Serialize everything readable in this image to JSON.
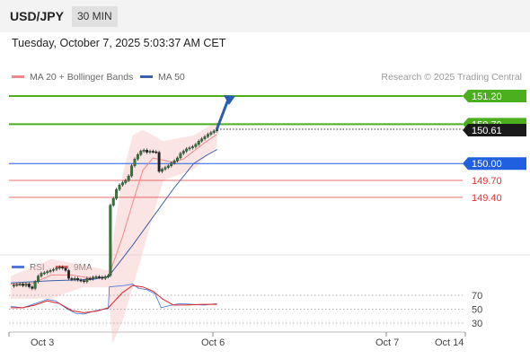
{
  "header": {
    "pair": "USD/JPY",
    "timeframe": "30 MIN"
  },
  "datetime": "Tuesday, October 7, 2025 5:03:37 AM CET",
  "legend": {
    "ma20": {
      "label": "MA 20 + Bollinger Bands",
      "color": "#f08a8a"
    },
    "ma50": {
      "label": "MA 50",
      "color": "#3b5fa8"
    }
  },
  "credit": "Research © 2025 Trading Central",
  "price_levels": [
    {
      "label": "151.20",
      "value": 151.2,
      "type": "resistance",
      "color": "#4caf1e"
    },
    {
      "label": "150.70",
      "value": 150.7,
      "type": "resistance",
      "color": "#4caf1e"
    },
    {
      "label": "150.61",
      "value": 150.61,
      "type": "last",
      "color": "#222222"
    },
    {
      "label": "150.00",
      "value": 150.0,
      "type": "pivot",
      "color": "#1f5fe0"
    },
    {
      "label": "149.70",
      "value": 149.7,
      "type": "support",
      "color": "#e03030"
    },
    {
      "label": "149.40",
      "value": 149.4,
      "type": "support",
      "color": "#e03030"
    }
  ],
  "rsi": {
    "legend_rsi": "RSI",
    "legend_ma": "9MA",
    "rsi_color": "#5577dd",
    "ma_color": "#dd2222",
    "levels": [
      "70",
      "50",
      "30"
    ]
  },
  "x_labels": [
    "Oct 3",
    "Oct 6",
    "Oct 7",
    "Oct 14"
  ],
  "chart_data": {
    "type": "candlestick",
    "pair": "USD/JPY",
    "timeframe": "30 MIN",
    "price_path": [
      [
        0,
        147.82
      ],
      [
        3,
        147.84
      ],
      [
        6,
        147.85
      ],
      [
        9,
        147.86
      ],
      [
        12,
        147.83
      ],
      [
        15,
        147.86
      ],
      [
        18,
        147.81
      ],
      [
        21,
        147.78
      ],
      [
        24,
        147.9
      ],
      [
        27,
        148.0
      ],
      [
        30,
        148.05
      ],
      [
        33,
        148.06
      ],
      [
        36,
        148.08
      ],
      [
        39,
        148.1
      ],
      [
        42,
        148.12
      ],
      [
        45,
        148.14
      ],
      [
        48,
        148.16
      ],
      [
        51,
        148.14
      ],
      [
        54,
        148.1
      ],
      [
        57,
        147.96
      ],
      [
        60,
        147.94
      ],
      [
        63,
        147.96
      ],
      [
        66,
        147.93
      ],
      [
        69,
        147.92
      ],
      [
        72,
        147.9
      ],
      [
        75,
        147.96
      ],
      [
        78,
        147.95
      ],
      [
        81,
        147.98
      ],
      [
        84,
        147.99
      ],
      [
        87,
        147.98
      ],
      [
        90,
        147.96
      ],
      [
        93,
        147.99
      ],
      [
        96,
        148.01
      ],
      [
        98,
        149.26
      ],
      [
        101,
        149.38
      ],
      [
        104,
        149.54
      ],
      [
        107,
        149.62
      ],
      [
        110,
        149.66
      ],
      [
        113,
        149.7
      ],
      [
        116,
        149.78
      ],
      [
        119,
        149.96
      ],
      [
        122,
        150.08
      ],
      [
        125,
        150.16
      ],
      [
        128,
        150.22
      ],
      [
        131,
        150.24
      ],
      [
        134,
        150.2
      ],
      [
        137,
        150.22
      ],
      [
        140,
        150.21
      ],
      [
        143,
        150.2
      ],
      [
        146,
        149.86
      ],
      [
        149,
        149.9
      ],
      [
        152,
        149.93
      ],
      [
        155,
        149.96
      ],
      [
        158,
        150.01
      ],
      [
        161,
        150.05
      ],
      [
        164,
        150.1
      ],
      [
        167,
        150.18
      ],
      [
        170,
        150.22
      ],
      [
        173,
        150.26
      ],
      [
        176,
        150.28
      ],
      [
        179,
        150.3
      ],
      [
        182,
        150.34
      ],
      [
        185,
        150.4
      ],
      [
        188,
        150.44
      ],
      [
        191,
        150.48
      ],
      [
        194,
        150.52
      ],
      [
        197,
        150.55
      ],
      [
        200,
        150.58
      ],
      [
        203,
        150.61
      ]
    ],
    "ma20": [
      [
        0,
        147.86
      ],
      [
        20,
        147.86
      ],
      [
        40,
        148.02
      ],
      [
        60,
        148.02
      ],
      [
        80,
        147.96
      ],
      [
        96,
        147.98
      ],
      [
        110,
        148.7
      ],
      [
        120,
        149.3
      ],
      [
        130,
        149.88
      ],
      [
        140,
        150.1
      ],
      [
        150,
        150.06
      ],
      [
        160,
        150.02
      ],
      [
        170,
        150.08
      ],
      [
        180,
        150.22
      ],
      [
        190,
        150.36
      ],
      [
        203,
        150.52
      ]
    ],
    "ma50": [
      [
        0,
        147.88
      ],
      [
        40,
        147.92
      ],
      [
        80,
        147.94
      ],
      [
        96,
        147.99
      ],
      [
        120,
        148.55
      ],
      [
        140,
        149.05
      ],
      [
        160,
        149.55
      ],
      [
        180,
        150.0
      ],
      [
        192,
        150.14
      ],
      [
        203,
        150.25
      ]
    ],
    "bollinger_upper": [
      [
        0,
        148.0
      ],
      [
        40,
        148.3
      ],
      [
        70,
        148.2
      ],
      [
        96,
        148.1
      ],
      [
        110,
        149.8
      ],
      [
        120,
        150.5
      ],
      [
        130,
        150.6
      ],
      [
        150,
        150.4
      ],
      [
        180,
        150.5
      ],
      [
        203,
        150.75
      ]
    ],
    "bollinger_lower": [
      [
        0,
        147.6
      ],
      [
        40,
        147.6
      ],
      [
        70,
        147.8
      ],
      [
        96,
        147.8
      ],
      [
        100,
        146.8
      ],
      [
        110,
        147.2
      ],
      [
        120,
        147.8
      ],
      [
        150,
        149.7
      ],
      [
        180,
        149.9
      ],
      [
        203,
        150.3
      ]
    ],
    "forecast_arrow": {
      "from": [
        203,
        150.62
      ],
      "to": [
        221,
        151.2
      ]
    },
    "rsi_values": [
      [
        0,
        54
      ],
      [
        12,
        52
      ],
      [
        24,
        58
      ],
      [
        36,
        64
      ],
      [
        44,
        62
      ],
      [
        56,
        50
      ],
      [
        64,
        44
      ],
      [
        72,
        43
      ],
      [
        84,
        48
      ],
      [
        96,
        51
      ],
      [
        97,
        82
      ],
      [
        104,
        83
      ],
      [
        112,
        84
      ],
      [
        120,
        86
      ],
      [
        126,
        80
      ],
      [
        134,
        78
      ],
      [
        142,
        72
      ],
      [
        148,
        52
      ],
      [
        156,
        55
      ],
      [
        166,
        58
      ],
      [
        178,
        57
      ],
      [
        190,
        56
      ],
      [
        203,
        58
      ]
    ],
    "rsi_ma": [
      [
        0,
        52
      ],
      [
        12,
        52
      ],
      [
        24,
        56
      ],
      [
        36,
        62
      ],
      [
        48,
        58
      ],
      [
        60,
        48
      ],
      [
        72,
        45
      ],
      [
        84,
        47
      ],
      [
        96,
        52
      ],
      [
        110,
        74
      ],
      [
        120,
        84
      ],
      [
        130,
        82
      ],
      [
        140,
        76
      ],
      [
        150,
        64
      ],
      [
        160,
        56
      ],
      [
        172,
        56
      ],
      [
        188,
        57
      ],
      [
        203,
        57
      ]
    ],
    "y_axis_levels": [
      151.2,
      150.7,
      150.0,
      149.7,
      149.4
    ]
  }
}
